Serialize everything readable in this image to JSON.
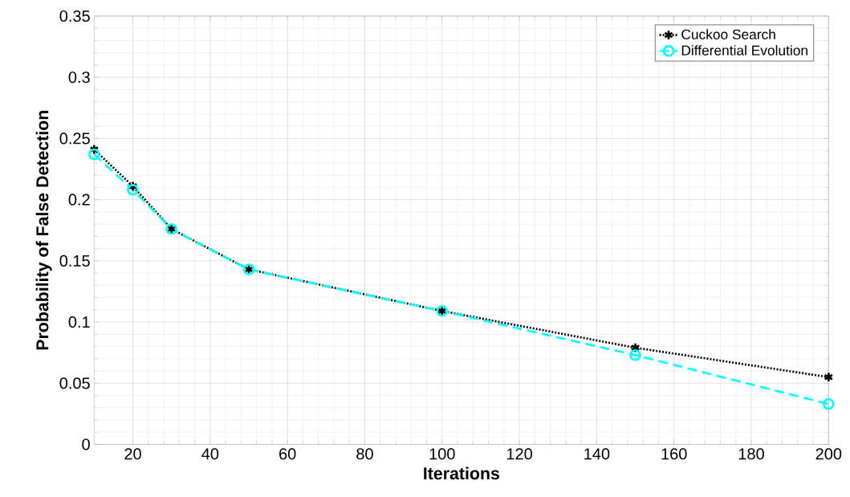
{
  "chart_data": {
    "type": "line",
    "xlabel": "Iterations",
    "ylabel": "Probability of False Detection",
    "x": [
      10,
      20,
      30,
      50,
      100,
      150,
      200
    ],
    "series": [
      {
        "name": "Cuckoo Search",
        "color": "#000000",
        "marker": "cross",
        "line_style": "dotted",
        "values": [
          0.241,
          0.211,
          0.176,
          0.143,
          0.109,
          0.079,
          0.055
        ]
      },
      {
        "name": "Differential Evolution",
        "color": "#00ffff",
        "marker": "circle",
        "line_style": "dashed",
        "values": [
          0.237,
          0.208,
          0.176,
          0.143,
          0.109,
          0.073,
          0.033
        ]
      }
    ],
    "xlim": [
      10,
      200
    ],
    "ylim": [
      0,
      0.35
    ],
    "xticks": [
      20,
      40,
      60,
      80,
      100,
      120,
      140,
      160,
      180,
      200
    ],
    "yticks": [
      0,
      0.05,
      0.1,
      0.15,
      0.2,
      0.25,
      0.3,
      0.35
    ],
    "grid": true,
    "legend": "top right"
  }
}
